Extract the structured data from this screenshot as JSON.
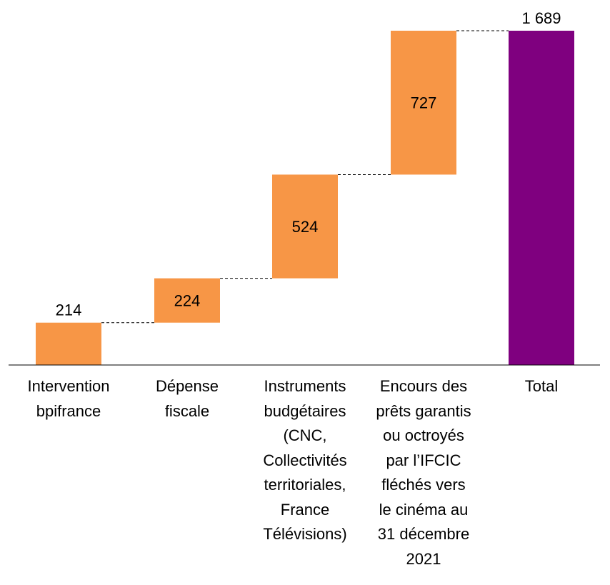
{
  "chart_data": {
    "type": "waterfall",
    "categories": [
      "Intervention\nbpifrance",
      "Dépense\nfiscale",
      "Instruments\nbudgétaires\n(CNC,\nCollectivités\nterritoriales,\nFrance\nTélévisions)",
      "Encours des\nprêts garantis\nou octroyés\npar l’IFCIC\nfléchés vers\nle cinéma au\n31 décembre\n2021",
      "Total"
    ],
    "values": [
      214,
      224,
      524,
      727,
      1689
    ],
    "value_labels": [
      "214",
      "224",
      "524",
      "727",
      "1 689"
    ],
    "is_total": [
      false,
      false,
      false,
      false,
      true
    ],
    "title": "",
    "xlabel": "",
    "ylabel": "",
    "ylim": [
      0,
      1689
    ],
    "grid": false,
    "legend": "none",
    "colors": {
      "increment": "#F79646",
      "total": "#7F007F",
      "connector": "#000000",
      "axis": "#000000"
    }
  }
}
